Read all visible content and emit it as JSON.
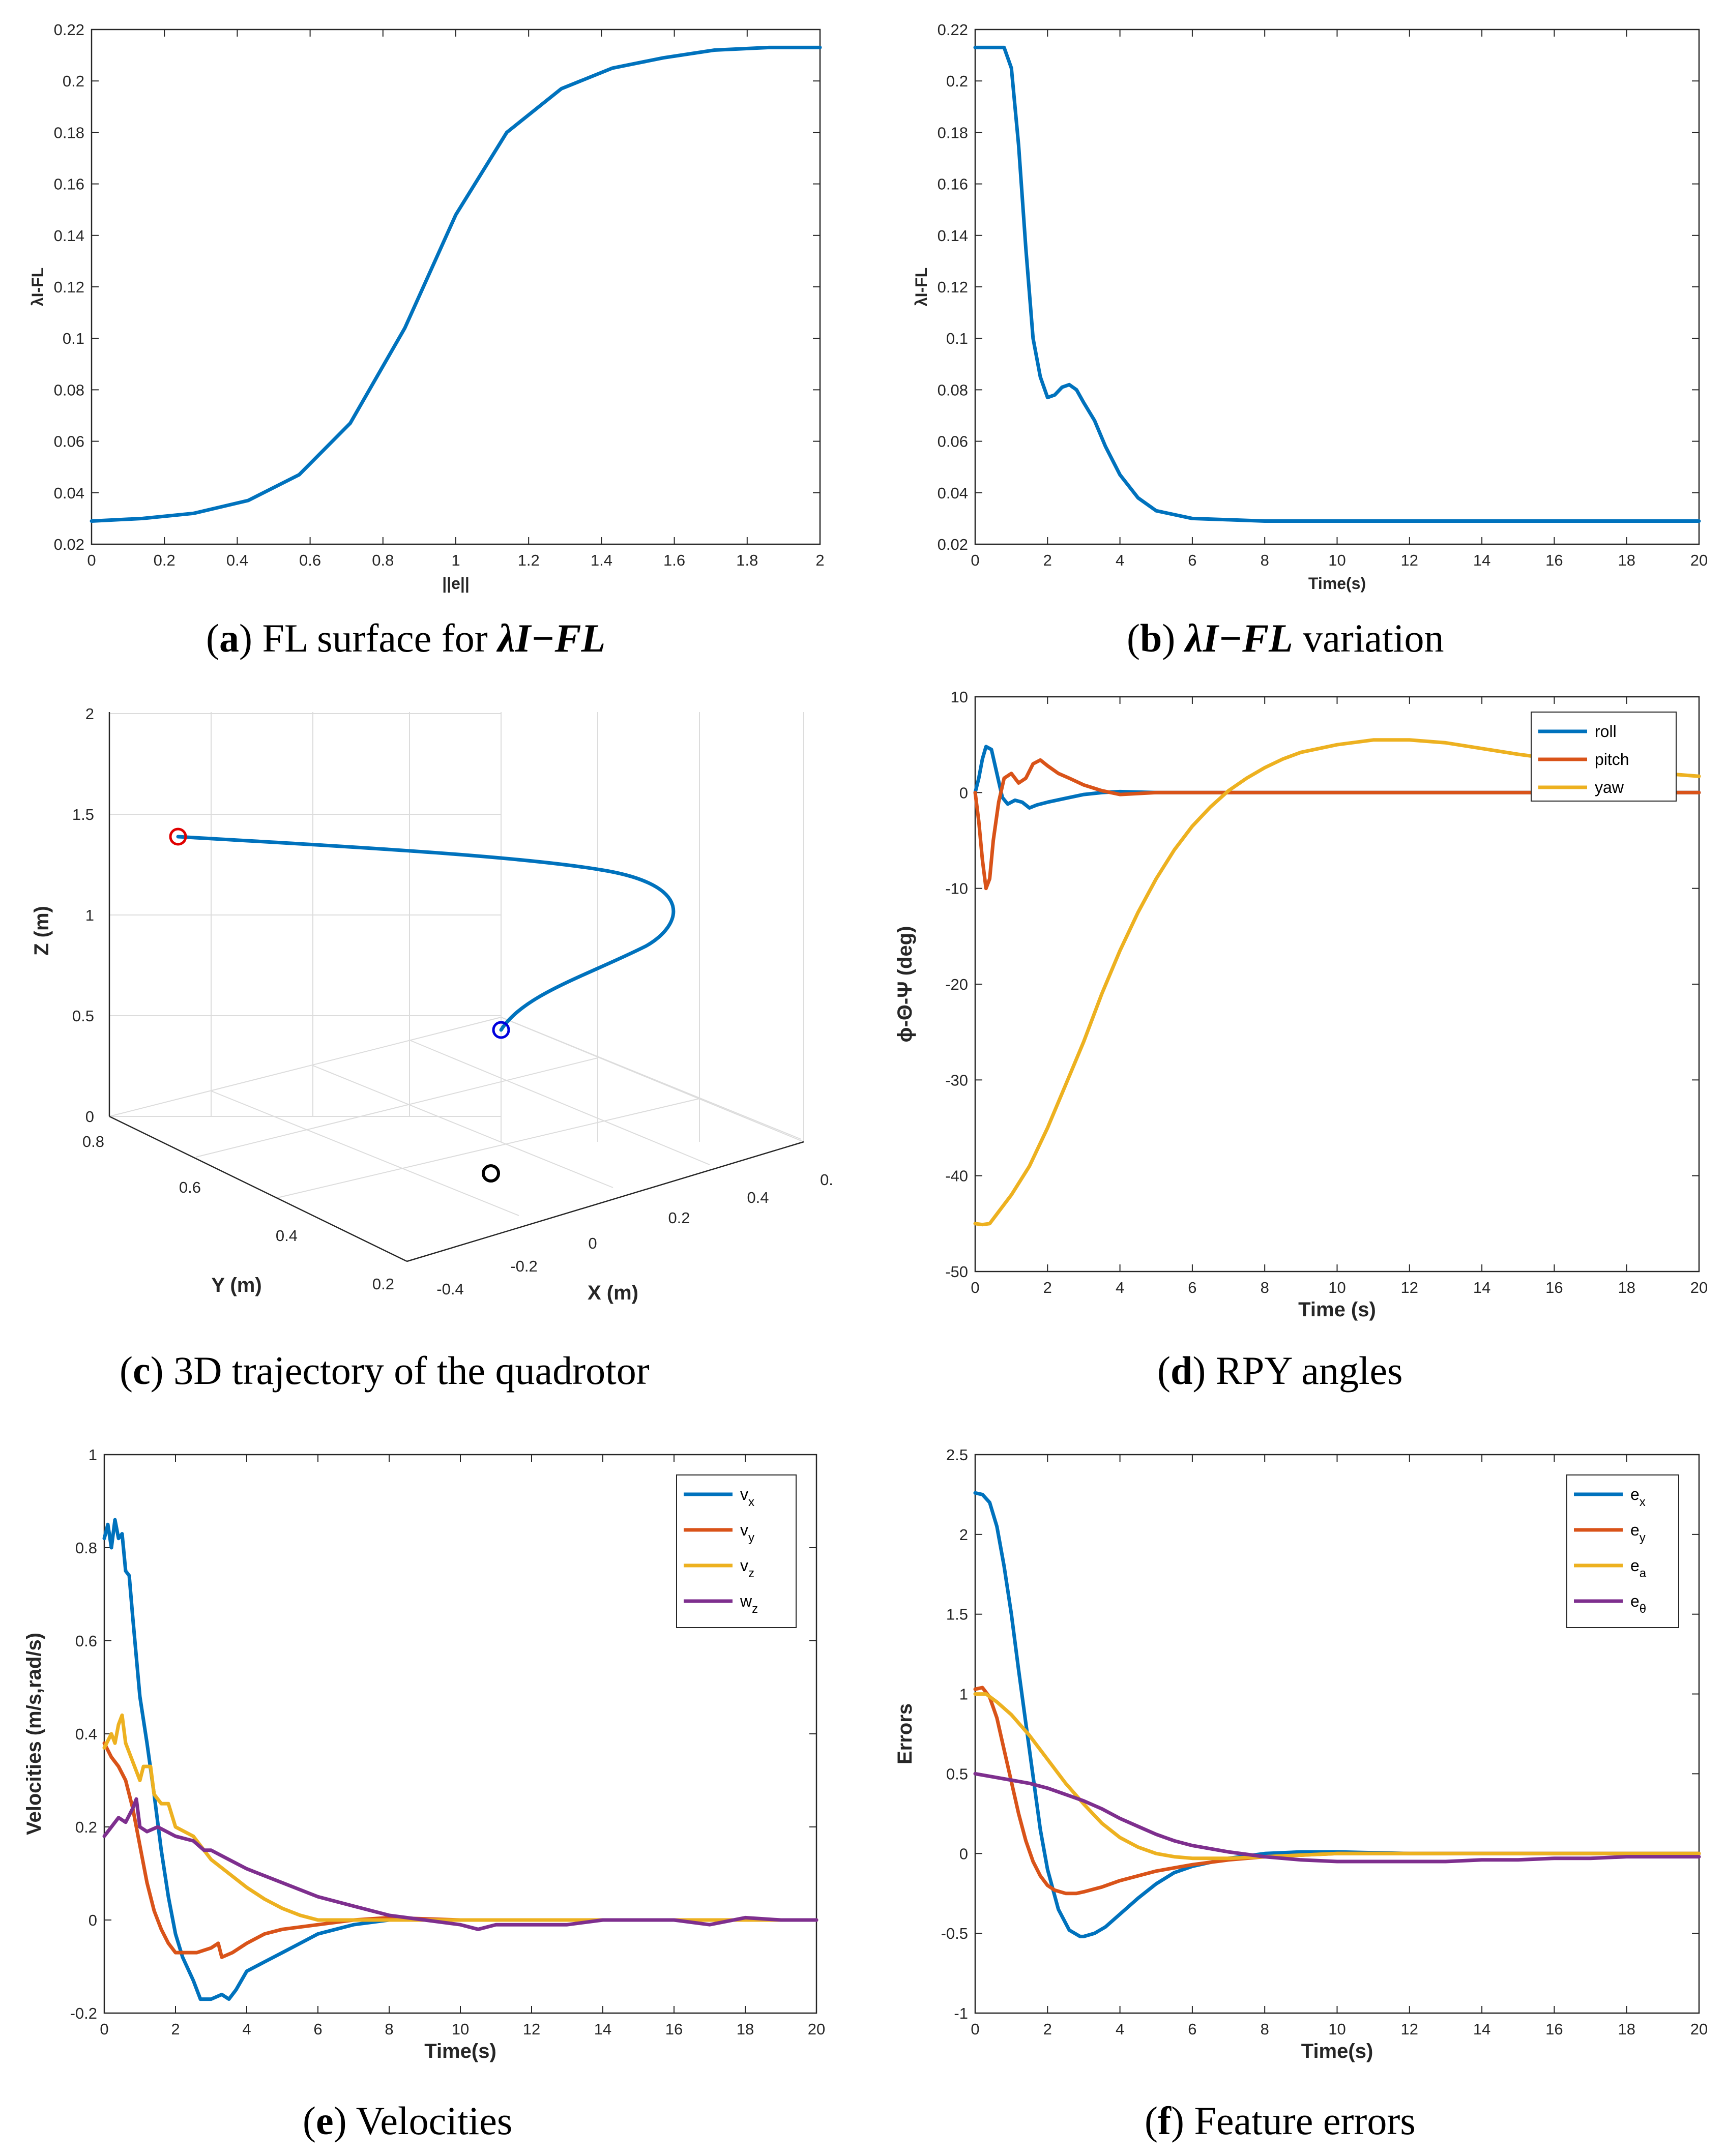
{
  "captions": [
    {
      "letter": "a",
      "text": "FL surface for",
      "symbol": "λI−FL",
      "suffix": ""
    },
    {
      "letter": "b",
      "text": "",
      "symbol": "λI−FL",
      "suffix": "variation"
    },
    {
      "letter": "c",
      "text": "3D trajectory of the quadrotor",
      "symbol": "",
      "suffix": ""
    },
    {
      "letter": "d",
      "text": "RPY angles",
      "symbol": "",
      "suffix": ""
    },
    {
      "letter": "e",
      "text": "Velocities",
      "symbol": "",
      "suffix": ""
    },
    {
      "letter": "f",
      "text": "Feature errors",
      "symbol": "",
      "suffix": ""
    }
  ],
  "colors": {
    "blue": "#0072BD",
    "orange": "#D95319",
    "yellow": "#EDB120",
    "purple": "#7E2F8E",
    "red": "#E00000",
    "marker_blue": "#0000DD",
    "black": "#000000"
  },
  "chart_data": [
    {
      "id": "a",
      "type": "line",
      "title": "",
      "xlabel": "||e||",
      "ylabel": "λI-FL",
      "xlim": [
        0,
        2
      ],
      "ylim": [
        0.02,
        0.22
      ],
      "xticks": [
        "0",
        "0.2",
        "0.4",
        "0.6",
        "0.8",
        "1",
        "1.2",
        "1.4",
        "1.6",
        "1.8",
        "2"
      ],
      "yticks": [
        "0.02",
        "0.04",
        "0.06",
        "0.08",
        "0.1",
        "0.12",
        "0.14",
        "0.16",
        "0.18",
        "0.2",
        "0.22"
      ],
      "series": [
        {
          "name": "λI-FL",
          "color": "blue",
          "x": [
            0,
            0.14,
            0.28,
            0.43,
            0.57,
            0.71,
            0.86,
            1.0,
            1.14,
            1.29,
            1.43,
            1.57,
            1.71,
            1.86,
            2.0
          ],
          "y": [
            0.029,
            0.03,
            0.032,
            0.037,
            0.047,
            0.067,
            0.104,
            0.148,
            0.18,
            0.197,
            0.205,
            0.209,
            0.212,
            0.213,
            0.213
          ]
        }
      ]
    },
    {
      "id": "b",
      "type": "line",
      "title": "",
      "xlabel": "Time(s)",
      "ylabel": "λI-FL",
      "xlim": [
        0,
        20
      ],
      "ylim": [
        0.02,
        0.22
      ],
      "xticks": [
        "0",
        "2",
        "4",
        "6",
        "8",
        "10",
        "12",
        "14",
        "16",
        "18",
        "20"
      ],
      "yticks": [
        "0.02",
        "0.04",
        "0.06",
        "0.08",
        "0.1",
        "0.12",
        "0.14",
        "0.16",
        "0.18",
        "0.2",
        "0.22"
      ],
      "series": [
        {
          "name": "λI-FL",
          "color": "blue",
          "x": [
            0,
            0.8,
            1.0,
            1.2,
            1.4,
            1.6,
            1.8,
            2.0,
            2.2,
            2.4,
            2.6,
            2.8,
            3.0,
            3.3,
            3.6,
            4.0,
            4.5,
            5.0,
            6.0,
            7.0,
            8.0,
            10,
            20
          ],
          "y": [
            0.213,
            0.213,
            0.205,
            0.175,
            0.135,
            0.1,
            0.085,
            0.077,
            0.078,
            0.081,
            0.082,
            0.08,
            0.075,
            0.068,
            0.058,
            0.047,
            0.038,
            0.033,
            0.03,
            0.0295,
            0.029,
            0.029,
            0.029
          ]
        }
      ]
    },
    {
      "id": "c",
      "type": "line3d",
      "title": "",
      "xlabel": "X (m)",
      "ylabel": "Y (m)",
      "zlabel": "Z (m)",
      "xticks": [
        "-0.4",
        "-0.2",
        "0",
        "0.2",
        "0.4",
        "0."
      ],
      "yticks": [
        "0.2",
        "0.4",
        "0.6",
        "0.8"
      ],
      "zticks": [
        "0",
        "0.5",
        "1",
        "1.5",
        "2"
      ],
      "series": [
        {
          "name": "trajectory",
          "color": "blue"
        }
      ],
      "markers": [
        {
          "name": "start",
          "color": "red"
        },
        {
          "name": "end",
          "color": "marker_blue"
        },
        {
          "name": "ground",
          "color": "black"
        }
      ]
    },
    {
      "id": "d",
      "type": "line",
      "title": "",
      "xlabel": "Time (s)",
      "ylabel": "ϕ-Θ-Ψ (deg)",
      "xlim": [
        0,
        20
      ],
      "ylim": [
        -50,
        10
      ],
      "xticks": [
        "0",
        "2",
        "4",
        "6",
        "8",
        "10",
        "12",
        "14",
        "16",
        "18",
        "20"
      ],
      "yticks": [
        "-50",
        "-40",
        "-30",
        "-20",
        "-10",
        "0",
        "10"
      ],
      "legend": "top-right",
      "series": [
        {
          "name": "roll",
          "color": "blue",
          "x": [
            0,
            0.1,
            0.2,
            0.3,
            0.45,
            0.6,
            0.75,
            0.9,
            1.1,
            1.3,
            1.5,
            1.7,
            2.0,
            2.5,
            3.0,
            3.5,
            4.0,
            5,
            20
          ],
          "y": [
            0,
            1.5,
            3.5,
            4.8,
            4.5,
            2.0,
            -0.5,
            -1.2,
            -0.8,
            -1.0,
            -1.6,
            -1.3,
            -1.0,
            -0.6,
            -0.2,
            0,
            0.1,
            0,
            0
          ]
        },
        {
          "name": "pitch",
          "color": "orange",
          "x": [
            0,
            0.1,
            0.2,
            0.3,
            0.4,
            0.5,
            0.65,
            0.8,
            1.0,
            1.2,
            1.4,
            1.6,
            1.8,
            2.0,
            2.3,
            2.6,
            3.0,
            3.5,
            4.0,
            5,
            20
          ],
          "y": [
            0,
            -3,
            -7,
            -10,
            -9,
            -5,
            -1,
            1.5,
            2.0,
            1.0,
            1.5,
            3.0,
            3.4,
            2.8,
            2.0,
            1.5,
            0.8,
            0.2,
            -0.2,
            0,
            0
          ]
        },
        {
          "name": "yaw",
          "color": "yellow",
          "x": [
            0,
            0.2,
            0.4,
            0.6,
            0.8,
            1,
            1.5,
            2,
            2.5,
            3,
            3.5,
            4,
            4.5,
            5,
            5.5,
            6,
            6.5,
            7,
            7.5,
            8,
            8.5,
            9,
            10,
            11,
            12,
            13,
            14,
            15,
            16,
            17,
            18,
            19,
            20
          ],
          "y": [
            -45,
            -45.1,
            -45,
            -44,
            -43,
            -42,
            -39,
            -35,
            -30.5,
            -26,
            -21,
            -16.5,
            -12.5,
            -9,
            -6,
            -3.5,
            -1.5,
            0.2,
            1.5,
            2.6,
            3.5,
            4.2,
            5.0,
            5.5,
            5.5,
            5.2,
            4.6,
            4.0,
            3.5,
            3.0,
            2.5,
            2.0,
            1.7
          ]
        }
      ]
    },
    {
      "id": "e",
      "type": "line",
      "title": "",
      "xlabel": "Time(s)",
      "ylabel": "Velocities (m/s,rad/s)",
      "xlim": [
        0,
        20
      ],
      "ylim": [
        -0.2,
        1
      ],
      "xticks": [
        "0",
        "2",
        "4",
        "6",
        "8",
        "10",
        "12",
        "14",
        "16",
        "18",
        "20"
      ],
      "yticks": [
        "-0.2",
        "0",
        "0.2",
        "0.4",
        "0.6",
        "0.8",
        "1"
      ],
      "legend": "top-right",
      "series": [
        {
          "name": "vx",
          "sub": "x",
          "base": "v",
          "color": "blue",
          "x": [
            0,
            0.1,
            0.2,
            0.3,
            0.4,
            0.5,
            0.6,
            0.7,
            0.8,
            1.0,
            1.2,
            1.4,
            1.6,
            1.8,
            2.0,
            2.2,
            2.5,
            2.7,
            3.0,
            3.3,
            3.5,
            3.7,
            4.0,
            4.5,
            5,
            5.5,
            6,
            6.5,
            7,
            8,
            9,
            10,
            20
          ],
          "y": [
            0.82,
            0.85,
            0.8,
            0.86,
            0.82,
            0.83,
            0.75,
            0.74,
            0.65,
            0.48,
            0.38,
            0.27,
            0.15,
            0.05,
            -0.03,
            -0.08,
            -0.13,
            -0.17,
            -0.17,
            -0.16,
            -0.17,
            -0.15,
            -0.11,
            -0.09,
            -0.07,
            -0.05,
            -0.03,
            -0.02,
            -0.01,
            0,
            0,
            0,
            0
          ]
        },
        {
          "name": "vy",
          "sub": "y",
          "base": "v",
          "color": "orange",
          "x": [
            0,
            0.2,
            0.4,
            0.6,
            0.8,
            1.0,
            1.2,
            1.4,
            1.6,
            1.8,
            2.0,
            2.3,
            2.6,
            3.0,
            3.2,
            3.3,
            3.6,
            4.0,
            4.5,
            5,
            6,
            7,
            8,
            10,
            20
          ],
          "y": [
            0.38,
            0.35,
            0.33,
            0.3,
            0.24,
            0.16,
            0.08,
            0.02,
            -0.02,
            -0.05,
            -0.07,
            -0.07,
            -0.07,
            -0.06,
            -0.05,
            -0.08,
            -0.07,
            -0.05,
            -0.03,
            -0.02,
            -0.01,
            0,
            0.005,
            0,
            0
          ]
        },
        {
          "name": "vz",
          "sub": "z",
          "base": "v",
          "color": "yellow",
          "x": [
            0,
            0.2,
            0.3,
            0.4,
            0.5,
            0.6,
            0.8,
            1.0,
            1.1,
            1.3,
            1.4,
            1.6,
            1.8,
            2.0,
            2.5,
            2.8,
            3.0,
            3.5,
            4.0,
            4.5,
            5,
            5.5,
            6,
            7,
            8,
            10,
            20
          ],
          "y": [
            0.37,
            0.4,
            0.38,
            0.42,
            0.44,
            0.38,
            0.34,
            0.3,
            0.33,
            0.33,
            0.27,
            0.25,
            0.25,
            0.2,
            0.18,
            0.15,
            0.13,
            0.1,
            0.07,
            0.045,
            0.025,
            0.01,
            0,
            0,
            0,
            0,
            0
          ]
        },
        {
          "name": "wz",
          "sub": "z",
          "base": "w",
          "color": "purple",
          "x": [
            0,
            0.2,
            0.4,
            0.6,
            0.8,
            0.9,
            1.0,
            1.2,
            1.5,
            2.0,
            2.5,
            2.8,
            3.0,
            3.5,
            4.0,
            5,
            6,
            7,
            8,
            9,
            10,
            10.5,
            11,
            12,
            13,
            14,
            15,
            16,
            17,
            18,
            19,
            20
          ],
          "y": [
            0.18,
            0.2,
            0.22,
            0.21,
            0.24,
            0.26,
            0.2,
            0.19,
            0.2,
            0.18,
            0.17,
            0.15,
            0.15,
            0.13,
            0.11,
            0.08,
            0.05,
            0.03,
            0.01,
            0,
            -0.01,
            -0.02,
            -0.01,
            -0.01,
            -0.01,
            0,
            0,
            0,
            -0.01,
            0.005,
            0,
            0
          ]
        }
      ]
    },
    {
      "id": "f",
      "type": "line",
      "title": "",
      "xlabel": "Time(s)",
      "ylabel": "Errors",
      "xlim": [
        0,
        20
      ],
      "ylim": [
        -1,
        2.5
      ],
      "xticks": [
        "0",
        "2",
        "4",
        "6",
        "8",
        "10",
        "12",
        "14",
        "16",
        "18",
        "20"
      ],
      "yticks": [
        "-1",
        "-0.5",
        "0",
        "0.5",
        "1",
        "1.5",
        "2",
        "2.5"
      ],
      "legend": "top-right",
      "series": [
        {
          "name": "ex",
          "sub": "x",
          "base": "e",
          "color": "blue",
          "x": [
            0,
            0.2,
            0.4,
            0.6,
            0.8,
            1.0,
            1.2,
            1.5,
            1.8,
            2.0,
            2.3,
            2.6,
            2.9,
            3.0,
            3.3,
            3.6,
            4.0,
            4.5,
            5,
            5.5,
            6,
            7,
            8,
            9,
            10,
            12,
            14,
            20
          ],
          "y": [
            2.26,
            2.25,
            2.2,
            2.05,
            1.8,
            1.5,
            1.15,
            0.65,
            0.15,
            -0.1,
            -0.35,
            -0.48,
            -0.52,
            -0.52,
            -0.5,
            -0.46,
            -0.38,
            -0.28,
            -0.19,
            -0.12,
            -0.08,
            -0.03,
            0,
            0.01,
            0.01,
            0,
            0,
            0
          ]
        },
        {
          "name": "ey",
          "sub": "y",
          "base": "e",
          "color": "orange",
          "x": [
            0,
            0.2,
            0.4,
            0.6,
            0.8,
            1.0,
            1.2,
            1.4,
            1.6,
            1.8,
            2.0,
            2.2,
            2.5,
            2.8,
            3.0,
            3.5,
            4.0,
            5,
            6,
            7,
            8,
            10,
            20
          ],
          "y": [
            1.03,
            1.04,
            0.98,
            0.85,
            0.65,
            0.45,
            0.25,
            0.08,
            -0.05,
            -0.14,
            -0.2,
            -0.23,
            -0.25,
            -0.25,
            -0.24,
            -0.21,
            -0.17,
            -0.11,
            -0.07,
            -0.04,
            -0.02,
            0,
            0
          ]
        },
        {
          "name": "ea",
          "sub": "a",
          "base": "e",
          "color": "yellow",
          "x": [
            0,
            0.3,
            0.6,
            1.0,
            1.5,
            2.0,
            2.5,
            3.0,
            3.5,
            4.0,
            4.5,
            5,
            5.5,
            6,
            7,
            8,
            9,
            10,
            20
          ],
          "y": [
            1.0,
            1.0,
            0.95,
            0.87,
            0.74,
            0.59,
            0.44,
            0.31,
            0.19,
            0.1,
            0.04,
            0.0,
            -0.02,
            -0.03,
            -0.03,
            -0.02,
            -0.01,
            0,
            0
          ]
        },
        {
          "name": "eθ",
          "sub": "θ",
          "base": "e",
          "color": "purple",
          "x": [
            0,
            0.5,
            1.0,
            1.5,
            2.0,
            2.5,
            3.0,
            3.5,
            4.0,
            4.5,
            5.0,
            5.5,
            6.0,
            7.0,
            8.0,
            9.0,
            10.0,
            11,
            12,
            13,
            14,
            15,
            16,
            17,
            18,
            19,
            20
          ],
          "y": [
            0.5,
            0.48,
            0.46,
            0.44,
            0.41,
            0.37,
            0.33,
            0.28,
            0.22,
            0.17,
            0.12,
            0.08,
            0.05,
            0.01,
            -0.02,
            -0.04,
            -0.05,
            -0.05,
            -0.05,
            -0.05,
            -0.04,
            -0.04,
            -0.03,
            -0.03,
            -0.02,
            -0.02,
            -0.02
          ]
        }
      ]
    }
  ]
}
